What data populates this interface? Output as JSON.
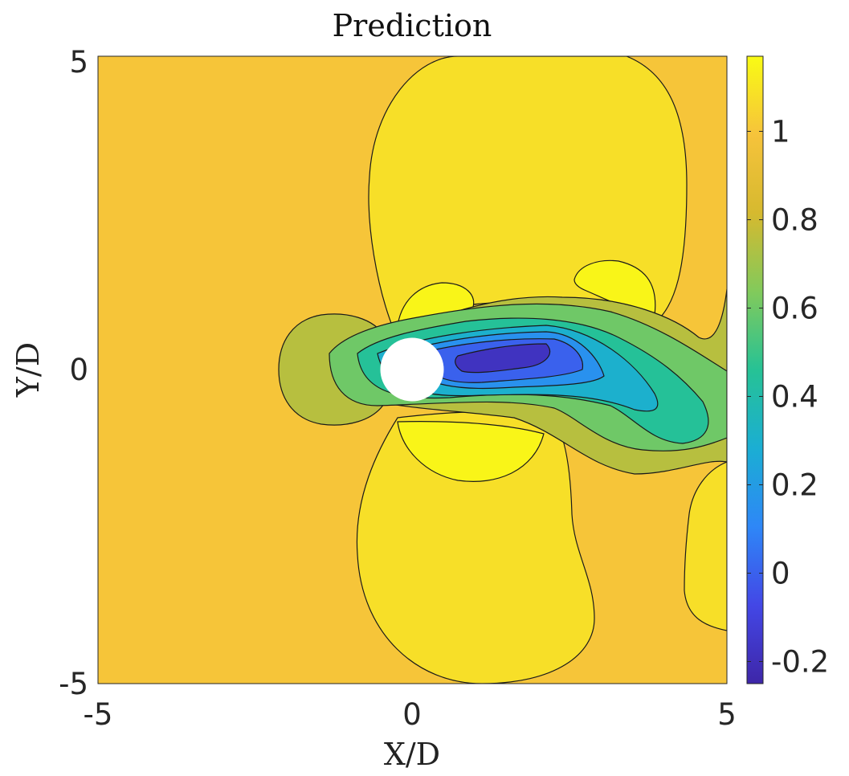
{
  "chart_data": {
    "type": "contour",
    "title": "Prediction",
    "xlabel": "X/D",
    "ylabel": "Y/D",
    "xlim": [
      -5,
      5
    ],
    "ylim": [
      -5,
      5
    ],
    "x_ticks": [
      "-5",
      "0",
      "5"
    ],
    "y_ticks": [
      "-5",
      "0",
      "5"
    ],
    "colorbar": {
      "range": [
        -0.25,
        1.17
      ],
      "ticks": [
        "-0.2",
        "0",
        "0.2",
        "0.4",
        "0.6",
        "0.8",
        "1"
      ],
      "tick_values": [
        -0.2,
        0,
        0.2,
        0.4,
        0.6,
        0.8,
        1.0
      ],
      "colormap": [
        "#3e26a8",
        "#4347e6",
        "#2e87f7",
        "#1baed3",
        "#26c295",
        "#82ca5b",
        "#d6b92f",
        "#f6c33b",
        "#f9fb14"
      ]
    },
    "cylinder": {
      "center": [
        0,
        0
      ],
      "diameter": 1
    },
    "field": {
      "background_level": 1.0,
      "regions": [
        {
          "name": "upper-high",
          "level": 1.08
        },
        {
          "name": "lower-high",
          "level": 1.08
        },
        {
          "name": "bottom-right-high",
          "level": 1.08
        },
        {
          "name": "upper-peak-left",
          "level": 1.15
        },
        {
          "name": "upper-peak-right",
          "level": 1.15
        },
        {
          "name": "lower-peak",
          "level": 1.15
        },
        {
          "name": "stagnation",
          "level": 0.75
        },
        {
          "name": "wake-0.75",
          "level": 0.75
        },
        {
          "name": "wake-0.6",
          "level": 0.6
        },
        {
          "name": "wake-0.45",
          "level": 0.45
        },
        {
          "name": "wake-0.3",
          "level": 0.3
        },
        {
          "name": "wake-0.15",
          "level": 0.15
        },
        {
          "name": "wake-0",
          "level": 0.0
        },
        {
          "name": "wake-core",
          "level": -0.18
        }
      ]
    }
  }
}
